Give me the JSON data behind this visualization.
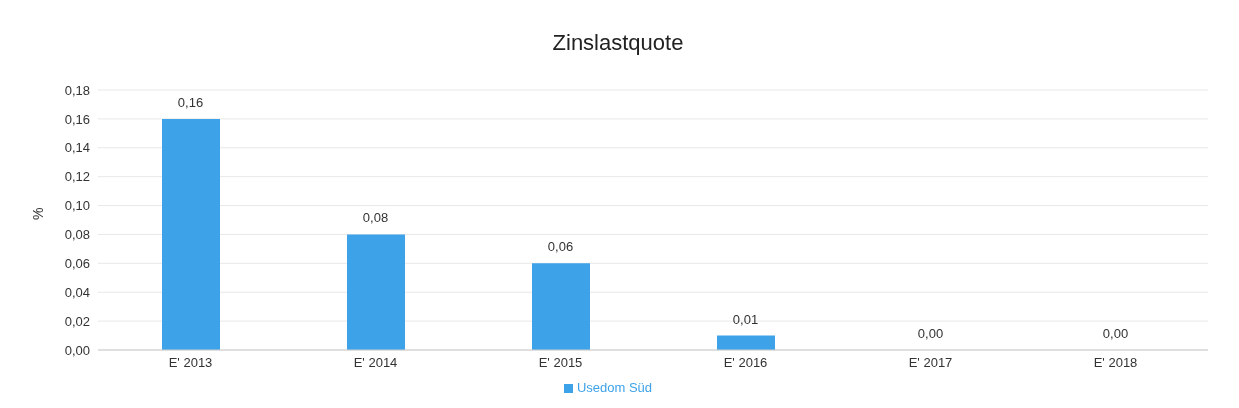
{
  "chart_data": {
    "type": "bar",
    "title": "Zinslastquote",
    "ylabel": "%",
    "categories": [
      "E' 2013",
      "E' 2014",
      "E' 2015",
      "E' 2016",
      "E' 2017",
      "E' 2018"
    ],
    "series": [
      {
        "name": "Usedom Süd",
        "color": "#3da2e8",
        "values": [
          0.16,
          0.08,
          0.06,
          0.01,
          0,
          0
        ],
        "value_labels": [
          "0,16",
          "0,08",
          "0,06",
          "0,01",
          "0,00",
          "0,00"
        ]
      }
    ],
    "ylim": [
      0,
      0.18
    ],
    "yticks": [
      {
        "value": 0,
        "label": "0,00"
      },
      {
        "value": 0.02,
        "label": "0,02"
      },
      {
        "value": 0.04,
        "label": "0,04"
      },
      {
        "value": 0.06,
        "label": "0,06"
      },
      {
        "value": 0.08,
        "label": "0,08"
      },
      {
        "value": 0.1,
        "label": "0,10"
      },
      {
        "value": 0.12,
        "label": "0,12"
      },
      {
        "value": 0.14,
        "label": "0,14"
      },
      {
        "value": 0.16,
        "label": "0,16"
      },
      {
        "value": 0.18,
        "label": "0,18"
      }
    ],
    "grid": "y",
    "legend": "bottom"
  }
}
